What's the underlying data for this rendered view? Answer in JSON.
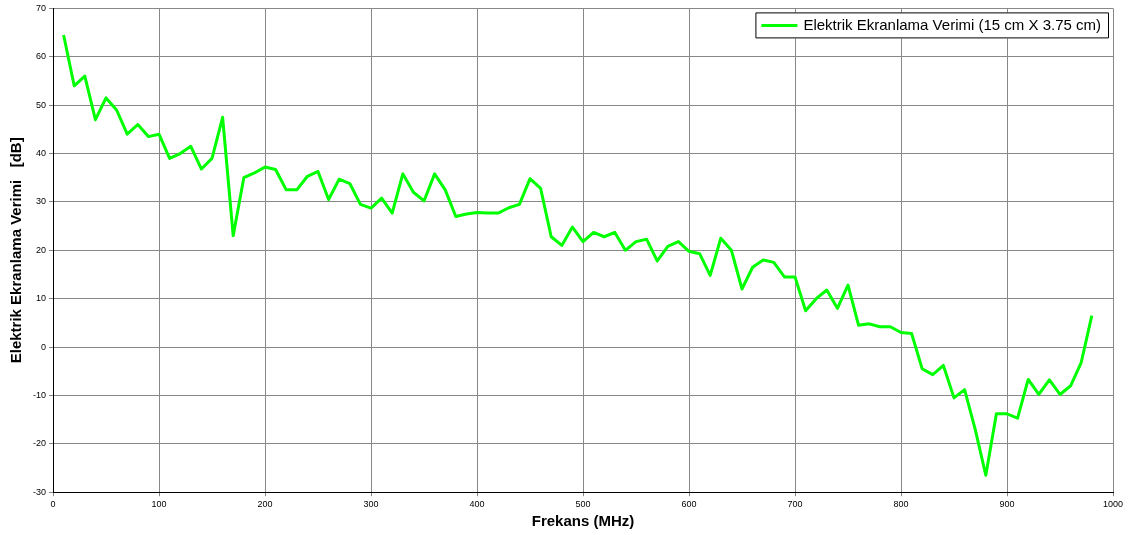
{
  "chart_data": {
    "type": "line",
    "xlabel": "Frekans (MHz)",
    "ylabel": "Elektrik Ekranlama Verimi   [dB]",
    "x": [
      10,
      20,
      30,
      40,
      50,
      60,
      70,
      80,
      90,
      100,
      110,
      120,
      130,
      140,
      150,
      160,
      170,
      180,
      190,
      200,
      210,
      220,
      230,
      240,
      250,
      260,
      270,
      280,
      290,
      300,
      310,
      320,
      330,
      340,
      350,
      360,
      370,
      380,
      390,
      400,
      410,
      420,
      430,
      440,
      450,
      460,
      470,
      480,
      490,
      500,
      510,
      520,
      530,
      540,
      550,
      560,
      570,
      580,
      590,
      600,
      610,
      620,
      630,
      640,
      650,
      660,
      670,
      680,
      690,
      700,
      710,
      720,
      730,
      740,
      750,
      760,
      770,
      780,
      790,
      800,
      810,
      820,
      830,
      840,
      850,
      860,
      870,
      880,
      890,
      900,
      910,
      920,
      930,
      940,
      950,
      960,
      970,
      980
    ],
    "series": [
      {
        "name": "Elektrik Ekranlama Verimi (15 cm X 3.75 cm)",
        "color": "#00ff00",
        "values": [
          64.5,
          54,
          56,
          47,
          51.5,
          49,
          44,
          46,
          43.5,
          44,
          39,
          40,
          41.5,
          36.8,
          39,
          47.5,
          23,
          35,
          36,
          37.2,
          36.7,
          32.5,
          32.5,
          35.3,
          36.3,
          30.5,
          34.7,
          33.8,
          29.5,
          28.7,
          30.8,
          27.7,
          35.8,
          32,
          30.2,
          35.8,
          32.5,
          27,
          27.5,
          27.8,
          27.7,
          27.7,
          28.8,
          29.5,
          34.8,
          32.8,
          22.8,
          21,
          24.8,
          21.8,
          23.7,
          22.8,
          23.7,
          20,
          21.8,
          22.3,
          17.8,
          20.8,
          21.8,
          19.8,
          19.3,
          14.8,
          22.5,
          20,
          12,
          16.5,
          18,
          17.5,
          14.5,
          14.5,
          7.5,
          10,
          11.8,
          8,
          12.8,
          4.5,
          4.8,
          4.2,
          4.2,
          3,
          2.8,
          -4.5,
          -5.7,
          -3.8,
          -10.5,
          -8.8,
          -17,
          -26.5,
          -13.8,
          -13.8,
          -14.7,
          -6.7,
          -9.8,
          -6.8,
          -9.8,
          -8,
          -3.2,
          6.5
        ]
      }
    ],
    "xlim": [
      0,
      1000
    ],
    "xticks": [
      0,
      100,
      200,
      300,
      400,
      500,
      600,
      700,
      800,
      900,
      1000
    ],
    "ylim": [
      -30,
      70
    ],
    "yticks": [
      -30,
      -20,
      -10,
      0,
      10,
      20,
      30,
      40,
      50,
      60,
      70
    ],
    "grid": true,
    "legend": "top right",
    "marker": "none",
    "line_style": "solid"
  }
}
